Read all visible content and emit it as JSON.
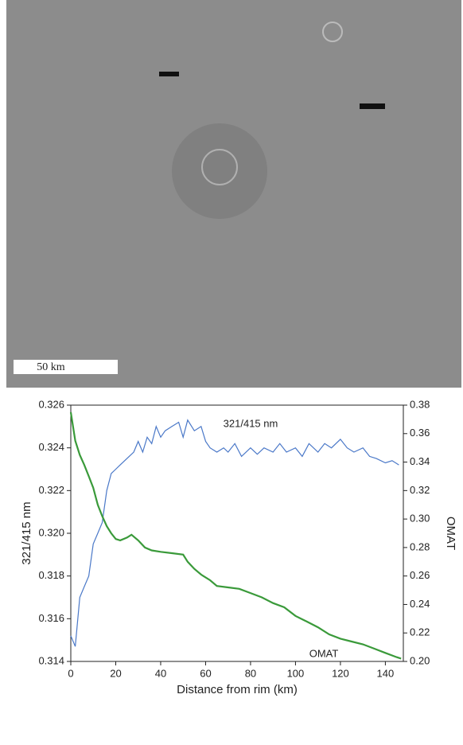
{
  "image": {
    "scale_label": "50 km"
  },
  "chart_data": {
    "type": "line",
    "x_label": "Distance from rim (km)",
    "y_label": "321/415 nm",
    "y2_label": "OMAT",
    "xlim": [
      0,
      148
    ],
    "xticks": [
      0,
      20,
      40,
      60,
      80,
      100,
      120,
      140
    ],
    "ylim": [
      0.314,
      0.326
    ],
    "yticks": [
      0.314,
      0.316,
      0.318,
      {
        "value": 0.32,
        "label": "0.320"
      },
      0.322,
      0.324,
      0.326
    ],
    "y2lim": [
      0.2,
      0.38
    ],
    "y2ticks": [
      {
        "value": 0.2,
        "label": "0.20"
      },
      0.22,
      0.24,
      0.26,
      0.28,
      {
        "value": 0.3,
        "label": "0.30"
      },
      0.32,
      0.34,
      0.36,
      0.38
    ],
    "series": [
      {
        "name": "321/415 nm",
        "color": "#4a78c8",
        "x": [
          0,
          2,
          4,
          6,
          8,
          10,
          12,
          14,
          16,
          18,
          20,
          22,
          25,
          28,
          30,
          32,
          34,
          36,
          38,
          40,
          42,
          45,
          48,
          50,
          52,
          55,
          58,
          60,
          62,
          65,
          68,
          70,
          73,
          76,
          80,
          83,
          86,
          90,
          93,
          96,
          100,
          103,
          106,
          110,
          113,
          116,
          120,
          123,
          126,
          130,
          133,
          136,
          140,
          143,
          146
        ],
        "values": [
          0.3152,
          0.3147,
          0.317,
          0.3175,
          0.318,
          0.3195,
          0.32,
          0.3205,
          0.322,
          0.3228,
          0.323,
          0.3232,
          0.3235,
          0.3238,
          0.3243,
          0.3238,
          0.3245,
          0.3242,
          0.325,
          0.3245,
          0.3248,
          0.325,
          0.3252,
          0.3245,
          0.3253,
          0.3248,
          0.325,
          0.3243,
          0.324,
          0.3238,
          0.324,
          0.3238,
          0.3242,
          0.3236,
          0.324,
          0.3237,
          0.324,
          0.3238,
          0.3242,
          0.3238,
          0.324,
          0.3236,
          0.3242,
          0.3238,
          0.3242,
          0.324,
          0.3244,
          0.324,
          0.3238,
          0.324,
          0.3236,
          0.3235,
          0.3233,
          0.3234,
          0.3232
        ]
      },
      {
        "name": "OMAT",
        "color": "#3a9a3a",
        "axis": "y2",
        "x": [
          0,
          2,
          4,
          6,
          8,
          10,
          12,
          14,
          16,
          18,
          20,
          22,
          25,
          27,
          30,
          33,
          36,
          40,
          45,
          50,
          52,
          55,
          58,
          62,
          65,
          70,
          75,
          80,
          85,
          90,
          95,
          100,
          105,
          110,
          115,
          120,
          125,
          130,
          135,
          140,
          145,
          147
        ],
        "values": [
          0.375,
          0.355,
          0.345,
          0.338,
          0.33,
          0.322,
          0.31,
          0.302,
          0.295,
          0.29,
          0.286,
          0.285,
          0.287,
          0.289,
          0.285,
          0.28,
          0.278,
          0.277,
          0.276,
          0.275,
          0.27,
          0.265,
          0.261,
          0.257,
          0.253,
          0.252,
          0.251,
          0.248,
          0.245,
          0.241,
          0.238,
          0.232,
          0.228,
          0.224,
          0.219,
          0.216,
          0.214,
          0.212,
          0.209,
          0.206,
          0.203,
          0.202
        ]
      }
    ]
  }
}
